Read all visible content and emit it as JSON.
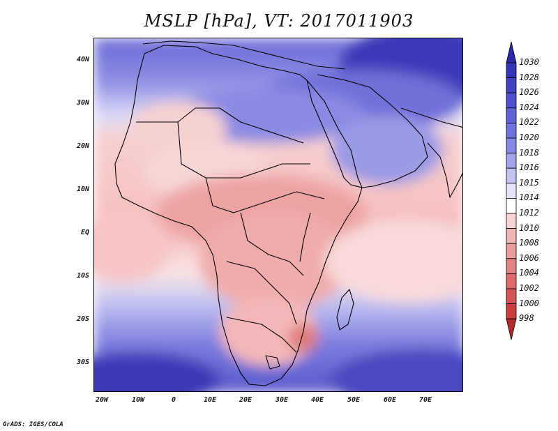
{
  "title": "MSLP [hPa], VT: 2017011903",
  "map": {
    "lat_labels": [
      "40N",
      "30N",
      "20N",
      "10N",
      "EQ",
      "10S",
      "20S",
      "30S"
    ],
    "lon_labels": [
      "20W",
      "10W",
      "0",
      "10E",
      "20E",
      "30E",
      "40E",
      "50E",
      "60E",
      "70E"
    ],
    "region": "Africa, Arabian Peninsula and surrounding oceans",
    "pressure_field": "mean sea level pressure (shaded)"
  },
  "colorbar": {
    "labels": [
      "1030",
      "1028",
      "1026",
      "1024",
      "1022",
      "1020",
      "1018",
      "1016",
      "1015",
      "1014",
      "1012",
      "1010",
      "1008",
      "1006",
      "1004",
      "1002",
      "1000",
      "998"
    ],
    "colors": [
      "#2a2aa8",
      "#3535b8",
      "#4343c4",
      "#5151cf",
      "#6161d8",
      "#7272df",
      "#8787e4",
      "#a3a3ea",
      "#c3c3f2",
      "#e4e4fb",
      "#ffffff",
      "#f8d3d3",
      "#f2b5b5",
      "#eb9c9c",
      "#e48383",
      "#de6a6a",
      "#d65353",
      "#cc3e3e",
      "#b32a2a"
    ]
  },
  "footer": "GrADS: IGES/COLA"
}
